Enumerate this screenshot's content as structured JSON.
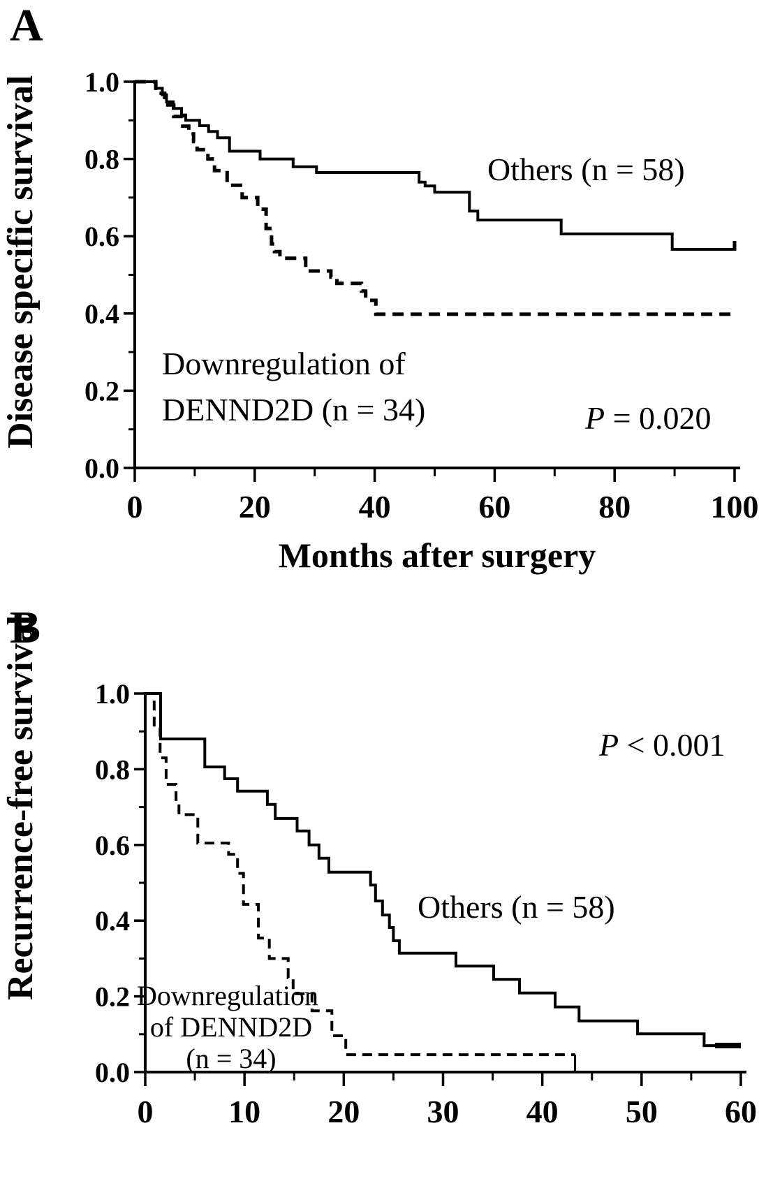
{
  "figure": {
    "background": "#ffffff",
    "line_color": "#000000"
  },
  "panels": {
    "a": {
      "letter": "A",
      "y_title": "Disease specific survival",
      "x_title": "Months after surgery",
      "others_label": "Others (n = 58)",
      "downreg_line1": "Downregulation of",
      "downreg_line2": "DENND2D (n = 34)",
      "p_italic": "P",
      "p_rest": " = 0.020"
    },
    "b": {
      "letter": "B",
      "y_title": "Recurrence-free survival",
      "x_title": "Months after surgery",
      "others_label": "Others (n = 58)",
      "downreg_line1": "Downregulation",
      "downreg_line2": "of DENND2D",
      "downreg_line3": "(n = 34)",
      "p_italic": "P",
      "p_rest": " < 0.001"
    }
  },
  "chart_data": [
    {
      "type": "line",
      "panel": "A",
      "subtype": "kaplan-meier-step",
      "xlabel": "Months after surgery",
      "ylabel": "Disease specific survival",
      "xlim": [
        0,
        100
      ],
      "ylim": [
        0.0,
        1.0
      ],
      "grid": false,
      "legend_position": "direct-labels-in-plot",
      "p_value": "P = 0.020",
      "x_major_ticks": {
        "values": [
          0,
          20,
          40,
          60,
          80,
          100
        ],
        "labels": [
          "0",
          "20",
          "40",
          "60",
          "80",
          "100"
        ]
      },
      "x_minor_ticks": [
        10,
        30,
        50,
        70,
        90
      ],
      "y_major_ticks": {
        "values": [
          0.0,
          0.2,
          0.4,
          0.6,
          0.8,
          1.0
        ],
        "labels": [
          "0.0",
          "0.2",
          "0.4",
          "0.6",
          "0.8",
          "1.0"
        ]
      },
      "y_minor_ticks": [
        0.1,
        0.3,
        0.5,
        0.7,
        0.9
      ],
      "series": [
        {
          "name": "Others (n = 58)",
          "n": 58,
          "line": "solid",
          "width": 4,
          "extend_to": 100,
          "end_tick": {
            "t": 100,
            "h": 12
          },
          "points": [
            [
              0,
              1.0
            ],
            [
              3.5,
              0.983
            ],
            [
              4.6,
              0.966
            ],
            [
              5.3,
              0.948
            ],
            [
              6.4,
              0.931
            ],
            [
              7.8,
              0.914
            ],
            [
              8.5,
              0.9
            ],
            [
              10.8,
              0.886
            ],
            [
              12.3,
              0.871
            ],
            [
              13.8,
              0.855
            ],
            [
              15.8,
              0.82
            ],
            [
              20.9,
              0.8
            ],
            [
              26.4,
              0.78
            ],
            [
              30.3,
              0.765
            ],
            [
              47.4,
              0.74
            ],
            [
              48.4,
              0.73
            ],
            [
              50,
              0.714
            ],
            [
              55.8,
              0.665
            ],
            [
              57.2,
              0.642
            ],
            [
              71.1,
              0.606
            ],
            [
              89.6,
              0.566
            ]
          ]
        },
        {
          "name": "Downregulation of DENND2D (n = 34)",
          "n": 34,
          "line": "dashed",
          "width": 5,
          "dash": [
            16,
            10
          ],
          "extend_to": 100,
          "points": [
            [
              0,
              1.0
            ],
            [
              3.5,
              0.97
            ],
            [
              5,
              0.94
            ],
            [
              6.5,
              0.91
            ],
            [
              8,
              0.885
            ],
            [
              9,
              0.865
            ],
            [
              9.8,
              0.845
            ],
            [
              10.4,
              0.824
            ],
            [
              12.2,
              0.8
            ],
            [
              13.3,
              0.77
            ],
            [
              15.4,
              0.732
            ],
            [
              17.9,
              0.7
            ],
            [
              20.5,
              0.67
            ],
            [
              21.9,
              0.62
            ],
            [
              22.8,
              0.58
            ],
            [
              23.3,
              0.56
            ],
            [
              24.2,
              0.543
            ],
            [
              28.5,
              0.51
            ],
            [
              32.7,
              0.494
            ],
            [
              33.7,
              0.478
            ],
            [
              37.8,
              0.458
            ],
            [
              38.5,
              0.434
            ],
            [
              40.2,
              0.398
            ]
          ]
        }
      ]
    },
    {
      "type": "line",
      "panel": "B",
      "subtype": "kaplan-meier-step",
      "xlabel": "Months after surgery",
      "ylabel": "Recurrence-free survival",
      "xlim": [
        0,
        60
      ],
      "ylim": [
        0.0,
        1.0
      ],
      "grid": false,
      "legend_position": "direct-labels-in-plot",
      "p_value": "P < 0.001",
      "x_major_ticks": {
        "values": [
          0,
          10,
          20,
          30,
          40,
          50,
          60
        ],
        "labels": [
          "0",
          "10",
          "20",
          "30",
          "40",
          "50",
          "60"
        ]
      },
      "x_minor_ticks": [
        5,
        15,
        25,
        35,
        45,
        55
      ],
      "y_major_ticks": {
        "values": [
          0.0,
          0.2,
          0.4,
          0.6,
          0.8,
          1.0
        ],
        "labels": [
          "0.0",
          "0.2",
          "0.4",
          "0.6",
          "0.8",
          "1.0"
        ]
      },
      "y_minor_ticks": [
        0.1,
        0.3,
        0.5,
        0.7,
        0.9
      ],
      "series": [
        {
          "name": "Others (n = 58)",
          "n": 58,
          "line": "solid",
          "width": 4,
          "extend_to": 60,
          "end_cap": {
            "t1": 57.4,
            "t2": 60,
            "w": 8
          },
          "points": [
            [
              0,
              1.0
            ],
            [
              1.55,
              0.88
            ],
            [
              6,
              0.806
            ],
            [
              8,
              0.775
            ],
            [
              9.3,
              0.742
            ],
            [
              12.3,
              0.707
            ],
            [
              13.1,
              0.67
            ],
            [
              15.3,
              0.637
            ],
            [
              16.5,
              0.6
            ],
            [
              17.5,
              0.565
            ],
            [
              18.5,
              0.528
            ],
            [
              22.7,
              0.494
            ],
            [
              23.2,
              0.452
            ],
            [
              23.9,
              0.415
            ],
            [
              24.6,
              0.382
            ],
            [
              25,
              0.347
            ],
            [
              25.6,
              0.314
            ],
            [
              31.3,
              0.28
            ],
            [
              35.1,
              0.245
            ],
            [
              37.7,
              0.209
            ],
            [
              41.3,
              0.172
            ],
            [
              43.7,
              0.135
            ],
            [
              49.6,
              0.101
            ],
            [
              56.3,
              0.07
            ]
          ]
        },
        {
          "name": "Downregulation of DENND2D (n = 34)",
          "n": 34,
          "line": "dashed",
          "width": 4,
          "dash": [
            14,
            9
          ],
          "extend_to": 43.3,
          "end_drop_to": 0.0,
          "points": [
            [
              0,
              1.0
            ],
            [
              0.9,
              0.91
            ],
            [
              1.5,
              0.83
            ],
            [
              2.1,
              0.76
            ],
            [
              3.1,
              0.72
            ],
            [
              3.4,
              0.68
            ],
            [
              5.3,
              0.605
            ],
            [
              8.4,
              0.575
            ],
            [
              9.3,
              0.525
            ],
            [
              9.9,
              0.443
            ],
            [
              11.4,
              0.354
            ],
            [
              12.5,
              0.3
            ],
            [
              14.4,
              0.249
            ],
            [
              14.9,
              0.207
            ],
            [
              16.8,
              0.162
            ],
            [
              18.8,
              0.096
            ],
            [
              20.2,
              0.046
            ]
          ]
        }
      ]
    }
  ]
}
